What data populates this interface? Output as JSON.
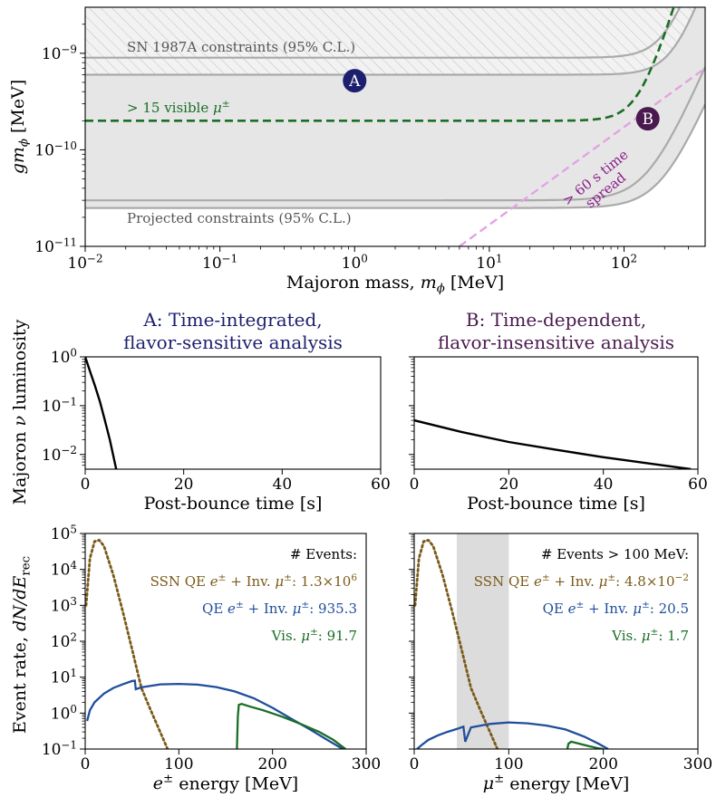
{
  "colors": {
    "green": "#1a6e25",
    "blue": "#1f4e9c",
    "brown": "#7a5a18",
    "navy": "#1c1f6e",
    "purple": "#4a1a4f",
    "magenta": "#8a1f8a",
    "pink": "#e3a3e3",
    "gray": "#aaaaaa",
    "shade": "#e6e6e6"
  },
  "chart_data": [
    {
      "id": "top",
      "type": "line",
      "xscale": "log",
      "yscale": "log",
      "xlim": [
        0.01,
        400
      ],
      "ylim": [
        1e-11,
        3e-09
      ],
      "xlabel": "Majoron mass, ",
      "xlabel_math": "m",
      "xlabel_sub": "ϕ",
      "xlabel_unit": " [MeV]",
      "ylabel": "gm",
      "ylabel_sub": "ϕ",
      "ylabel_unit": " [MeV]",
      "xticks": [
        {
          "base": "10",
          "exp": "−2"
        },
        {
          "base": "10",
          "exp": "−1"
        },
        {
          "base": "10",
          "exp": "0"
        },
        {
          "base": "10",
          "exp": "1"
        },
        {
          "base": "10",
          "exp": "2"
        }
      ],
      "xtick_values": [
        0.01,
        0.1,
        1,
        10,
        100
      ],
      "yticks": [
        {
          "base": "10",
          "exp": "−11"
        },
        {
          "base": "10",
          "exp": "−10"
        },
        {
          "base": "10",
          "exp": "−9"
        }
      ],
      "ytick_values": [
        1e-11,
        1e-10,
        1e-09
      ],
      "sn1987a_bounds": {
        "upper": 9e-10,
        "lower": 6e-10
      },
      "projected_bounds": {
        "upper": 3e-11,
        "lower": 2.5e-11
      },
      "visible_mu_curve": {
        "flat": 2e-10
      },
      "time_spread_line": {
        "x": [
          6,
          400
        ],
        "y": [
          1e-11,
          7e-10
        ]
      },
      "annotations": {
        "sn": "SN 1987A constraints (95% C.L.)",
        "projected": "Projected constraints (95% C.L.)",
        "visible": "> 15 visible ",
        "visible_mu": "μ",
        "visible_pm": "±",
        "spread_line1": "> 60 s time",
        "spread_line2": "spread"
      },
      "points": [
        {
          "label": "A",
          "x": 1,
          "y": 5.2e-10
        },
        {
          "label": "B",
          "x": 150,
          "y": 2.1e-10
        }
      ]
    },
    {
      "id": "mid-left",
      "type": "line",
      "title_line1": "A: Time-integrated,",
      "title_line2": "flavor-sensitive analysis",
      "xlabel": "Post-bounce time [s]",
      "ylabel": "Majoron ",
      "ylabel_nu": "ν",
      "ylabel_rest": " luminosity",
      "yscale": "log",
      "xlim": [
        0,
        60
      ],
      "ylim": [
        0.005,
        1
      ],
      "xticks": [
        "0",
        "20",
        "40",
        "60"
      ],
      "xtick_values": [
        0,
        20,
        40,
        60
      ],
      "yticks": [
        {
          "base": "10",
          "exp": "−2"
        },
        {
          "base": "10",
          "exp": "−1"
        },
        {
          "base": "10",
          "exp": "0"
        }
      ],
      "ytick_values": [
        0.01,
        0.1,
        1
      ],
      "series": [
        {
          "name": "luminosity",
          "x": [
            0,
            1,
            2,
            3,
            4,
            5,
            6.3
          ],
          "y": [
            1,
            0.5,
            0.25,
            0.12,
            0.05,
            0.02,
            0.005
          ]
        }
      ]
    },
    {
      "id": "mid-right",
      "type": "line",
      "title_line1": "B: Time-dependent,",
      "title_line2": "flavor-insensitive analysis",
      "xlabel": "Post-bounce time [s]",
      "yscale": "log",
      "xlim": [
        0,
        60
      ],
      "ylim": [
        0.005,
        1
      ],
      "xticks": [
        "0",
        "20",
        "40",
        "60"
      ],
      "xtick_values": [
        0,
        20,
        40,
        60
      ],
      "series": [
        {
          "name": "luminosity",
          "x": [
            0,
            10,
            20,
            30,
            40,
            50,
            58.5
          ],
          "y": [
            0.05,
            0.029,
            0.018,
            0.0125,
            0.0088,
            0.0065,
            0.005
          ]
        }
      ]
    },
    {
      "id": "bottom-left",
      "type": "line",
      "yscale": "log",
      "xlim": [
        0,
        300
      ],
      "ylim": [
        0.1,
        100000
      ],
      "xlabel_math": "e",
      "xlabel_pm": "±",
      "xlabel": " energy [MeV]",
      "ylabel": "Event rate, ",
      "ylabel_math": "dN/dE",
      "ylabel_sub": "rec",
      "xticks": [
        "0",
        "100",
        "200",
        "300"
      ],
      "xtick_values": [
        0,
        100,
        200,
        300
      ],
      "yticks": [
        {
          "base": "10",
          "exp": "−1"
        },
        {
          "base": "10",
          "exp": "0"
        },
        {
          "base": "10",
          "exp": "1"
        },
        {
          "base": "10",
          "exp": "2"
        },
        {
          "base": "10",
          "exp": "3"
        },
        {
          "base": "10",
          "exp": "4"
        },
        {
          "base": "10",
          "exp": "5"
        }
      ],
      "ytick_values": [
        0.1,
        1,
        10,
        100,
        1000,
        10000,
        100000
      ],
      "legend_header": "# Events:",
      "legend": [
        {
          "pre": "SSN QE ",
          "mid": "e",
          "sup": "±",
          "post": " + Inv. ",
          "mu": "μ",
          "sup2": "±",
          "val": ": 1.3×10",
          "exp": "6",
          "color": "brown"
        },
        {
          "pre": "QE ",
          "mid": "e",
          "sup": "±",
          "post": " + Inv. ",
          "mu": "μ",
          "sup2": "±",
          "val": ": 935.3",
          "exp": "",
          "color": "blue"
        },
        {
          "pre": "Vis. ",
          "mid": "",
          "sup": "",
          "post": "",
          "mu": "μ",
          "sup2": "±",
          "val": ": 91.7",
          "exp": "",
          "color": "green"
        }
      ],
      "series": [
        {
          "name": "SSN QE",
          "color": "brown",
          "style": "dotted",
          "x": [
            1,
            5,
            10,
            15,
            20,
            30,
            40,
            50,
            60,
            70,
            80,
            88
          ],
          "y": [
            1000,
            20000,
            60000,
            65000,
            45000,
            7000,
            700,
            60,
            5,
            1.2,
            0.3,
            0.1
          ]
        },
        {
          "name": "QE",
          "color": "blue",
          "style": "solid",
          "x": [
            2,
            5,
            10,
            20,
            30,
            40,
            50,
            53,
            54,
            60,
            80,
            100,
            120,
            140,
            160,
            180,
            200,
            220,
            240,
            260,
            275
          ],
          "y": [
            0.6,
            1.2,
            2.0,
            3.5,
            5.0,
            6.3,
            7.8,
            8.0,
            4.6,
            5.2,
            6.3,
            6.5,
            6.2,
            5.3,
            4.0,
            2.6,
            1.4,
            0.7,
            0.35,
            0.17,
            0.1
          ]
        },
        {
          "name": "Vis",
          "color": "green",
          "style": "solid",
          "x": [
            162,
            163,
            164,
            167,
            175,
            190,
            210,
            230,
            250,
            265,
            278
          ],
          "y": [
            0.1,
            0.8,
            1.7,
            1.8,
            1.55,
            1.2,
            0.8,
            0.5,
            0.3,
            0.18,
            0.1
          ]
        }
      ]
    },
    {
      "id": "bottom-right",
      "type": "line",
      "yscale": "log",
      "xlim": [
        0,
        300
      ],
      "ylim": [
        0.1,
        100000
      ],
      "xlabel_math": "μ",
      "xlabel_pm": "±",
      "xlabel": " energy [MeV]",
      "xticks": [
        "0",
        "100",
        "200",
        "300"
      ],
      "xtick_values": [
        0,
        100,
        200,
        300
      ],
      "shaded_x": [
        45,
        100
      ],
      "legend_header": "# Events > 100 MeV:",
      "legend": [
        {
          "pre": "SSN QE ",
          "mid": "e",
          "sup": "±",
          "post": " + Inv. ",
          "mu": "μ",
          "sup2": "±",
          "val": ": 4.8×10",
          "exp": "−2",
          "color": "brown"
        },
        {
          "pre": "QE ",
          "mid": "e",
          "sup": "±",
          "post": " + Inv. ",
          "mu": "μ",
          "sup2": "±",
          "val": ": 20.5",
          "exp": "",
          "color": "blue"
        },
        {
          "pre": "Vis. ",
          "mid": "",
          "sup": "",
          "post": "",
          "mu": "μ",
          "sup2": "±",
          "val": ": 1.7",
          "exp": "",
          "color": "green"
        }
      ],
      "series": [
        {
          "name": "SSN QE",
          "color": "brown",
          "style": "dotted",
          "x": [
            1,
            5,
            10,
            15,
            20,
            30,
            40,
            50,
            60,
            70,
            80,
            88
          ],
          "y": [
            1000,
            20000,
            60000,
            65000,
            45000,
            7000,
            700,
            60,
            5,
            1.2,
            0.3,
            0.1
          ]
        },
        {
          "name": "QE",
          "color": "blue",
          "style": "solid",
          "x": [
            3,
            8,
            15,
            25,
            35,
            45,
            52,
            54,
            60,
            80,
            100,
            120,
            140,
            160,
            180,
            195,
            205
          ],
          "y": [
            0.1,
            0.13,
            0.18,
            0.24,
            0.3,
            0.36,
            0.42,
            0.16,
            0.4,
            0.5,
            0.55,
            0.52,
            0.45,
            0.35,
            0.22,
            0.14,
            0.1
          ]
        },
        {
          "name": "Vis",
          "color": "green",
          "style": "solid",
          "x": [
            162,
            163,
            166,
            175,
            185,
            195,
            200
          ],
          "y": [
            0.1,
            0.14,
            0.16,
            0.14,
            0.12,
            0.105,
            0.1
          ]
        }
      ]
    }
  ]
}
